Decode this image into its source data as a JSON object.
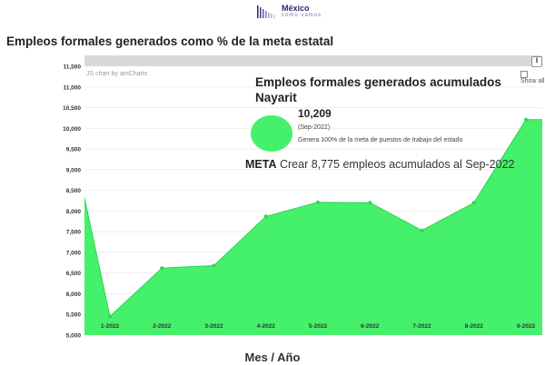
{
  "header": {
    "logo_text": "México",
    "logo_sub": "cómo vamos",
    "page_title": "Empleos formales generados como % de la meta estatal"
  },
  "chart_header": {
    "credit": "JS chart by amCharts",
    "show_all": "Show all"
  },
  "summary": {
    "title_line1": "Empleos formales generados acumulados",
    "title_line2": "Nayarit",
    "value": "10,209",
    "date": "(Sep-2022)",
    "description": "Genera 100% de la meta de puestos de trabajo del estado",
    "meta_label": "META",
    "meta_text": "Crear 8,775 empleos acumulados al Sep-2022"
  },
  "colors": {
    "area": "#45f06a",
    "scrollbar": "#d9d9d9"
  },
  "chart_data": {
    "type": "area",
    "xlabel": "Mes / Año",
    "ylabel": "",
    "ylim": [
      5000,
      11500
    ],
    "ytick_labels": [
      "5,000",
      "5,500",
      "6,000",
      "6,500",
      "7,000",
      "7,500",
      "8,000",
      "8,500",
      "9,000",
      "9,500",
      "10,000",
      "10,500",
      "11,000",
      "11,500"
    ],
    "categories": [
      "1-2022",
      "2-2022",
      "3-2022",
      "4-2022",
      "5-2022",
      "6-2022",
      "7-2022",
      "8-2022",
      "9-2022"
    ],
    "series": [
      {
        "values": [
          5450,
          6620,
          6680,
          7870,
          8210,
          8200,
          7530,
          8200,
          10209
        ]
      }
    ],
    "leading_value": 8320,
    "grid": true
  }
}
